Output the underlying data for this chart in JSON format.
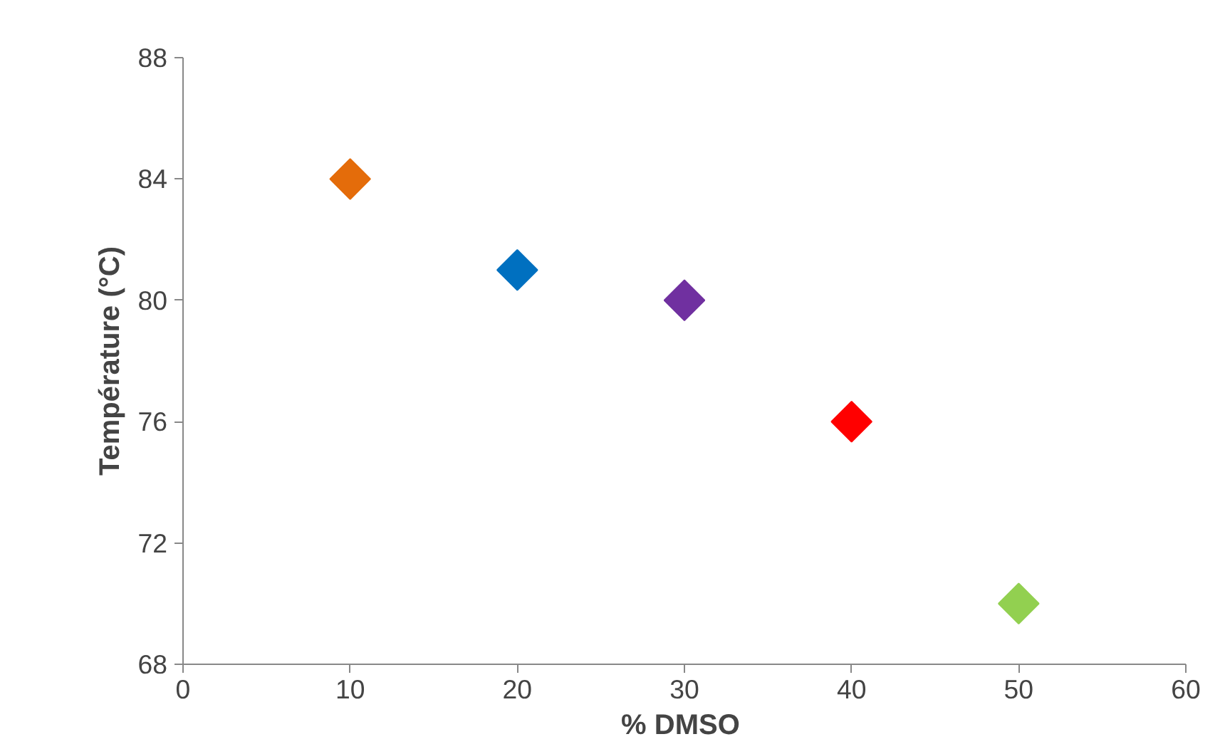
{
  "chart_data": {
    "type": "scatter",
    "xlabel": "%  DMSO",
    "ylabel": "Température (°C)",
    "x": [
      10,
      20,
      30,
      40,
      50
    ],
    "values": [
      84,
      81,
      80,
      76,
      70
    ],
    "colors": [
      "#e46c0a",
      "#0070c0",
      "#7030a0",
      "#ff0000",
      "#92d050"
    ],
    "marker": "diamond",
    "xlim": [
      0,
      60
    ],
    "xticks": [
      0,
      10,
      20,
      30,
      40,
      50,
      60
    ],
    "ylim": [
      68,
      88
    ],
    "yticks": [
      68,
      72,
      76,
      80,
      84,
      88
    ],
    "grid": false
  }
}
